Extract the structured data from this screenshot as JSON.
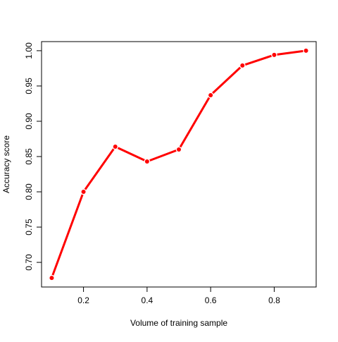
{
  "chart_data": {
    "type": "line",
    "title": "",
    "xlabel": "Volume of training sample",
    "ylabel": "Accuracy score",
    "x": [
      0.1,
      0.2,
      0.3,
      0.4,
      0.5,
      0.6,
      0.7,
      0.8,
      0.9
    ],
    "series": [
      {
        "values": [
          0.678,
          0.8,
          0.864,
          0.843,
          0.86,
          0.937,
          0.979,
          0.994,
          1.0
        ]
      }
    ],
    "xlim": [
      0.068,
      0.932
    ],
    "ylim": [
      0.6651,
      1.0129
    ],
    "xticks": [
      0.2,
      0.4,
      0.6,
      0.8
    ],
    "xtick_labels": [
      "0.2",
      "0.4",
      "0.6",
      "0.8"
    ],
    "yticks": [
      0.7,
      0.75,
      0.8,
      0.85,
      0.9,
      0.95,
      1.0
    ],
    "ytick_labels": [
      "0.70",
      "0.75",
      "0.80",
      "0.85",
      "0.90",
      "0.95",
      "1.00"
    ],
    "grid": false,
    "legend": "none",
    "line_color": "#ff0000",
    "marker": "filled-circle"
  }
}
